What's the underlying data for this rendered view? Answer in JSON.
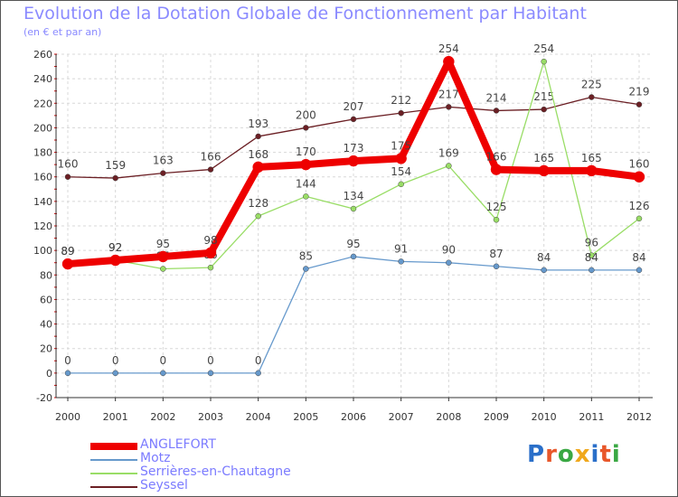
{
  "title": "Evolution de la Dotation Globale de Fonctionnement par Habitant",
  "subtitle": "(en € et par an)",
  "logo_text": "Proxiti",
  "chart_data": {
    "type": "line",
    "categories": [
      "2000",
      "2001",
      "2002",
      "2003",
      "2004",
      "2005",
      "2006",
      "2007",
      "2008",
      "2009",
      "2010",
      "2011",
      "2012"
    ],
    "ylim": [
      -20,
      260
    ],
    "yticks": [
      -20,
      0,
      20,
      40,
      60,
      80,
      100,
      120,
      140,
      160,
      180,
      200,
      220,
      240,
      260
    ],
    "grid": true,
    "series": [
      {
        "name": "Seyssel",
        "color": "#6b1f24",
        "values": [
          160,
          159,
          163,
          166,
          193,
          200,
          207,
          212,
          217,
          214,
          215,
          225,
          219
        ]
      },
      {
        "name": "Serrières-en-Chautagne",
        "color": "#99dd66",
        "values": [
          89,
          92,
          85,
          86,
          128,
          144,
          134,
          154,
          169,
          125,
          254,
          96,
          126
        ]
      },
      {
        "name": "Motz",
        "color": "#6699cc",
        "values": [
          0,
          0,
          0,
          0,
          0,
          85,
          95,
          91,
          90,
          87,
          84,
          84,
          84
        ]
      },
      {
        "name": "ANGLEFORT",
        "color": "#ee0000",
        "values": [
          89,
          92,
          95,
          98,
          168,
          170,
          173,
          175,
          254,
          166,
          165,
          165,
          160
        ]
      }
    ],
    "legend": [
      "ANGLEFORT",
      "Motz",
      "Serrières-en-Chautagne",
      "Seyssel"
    ]
  }
}
